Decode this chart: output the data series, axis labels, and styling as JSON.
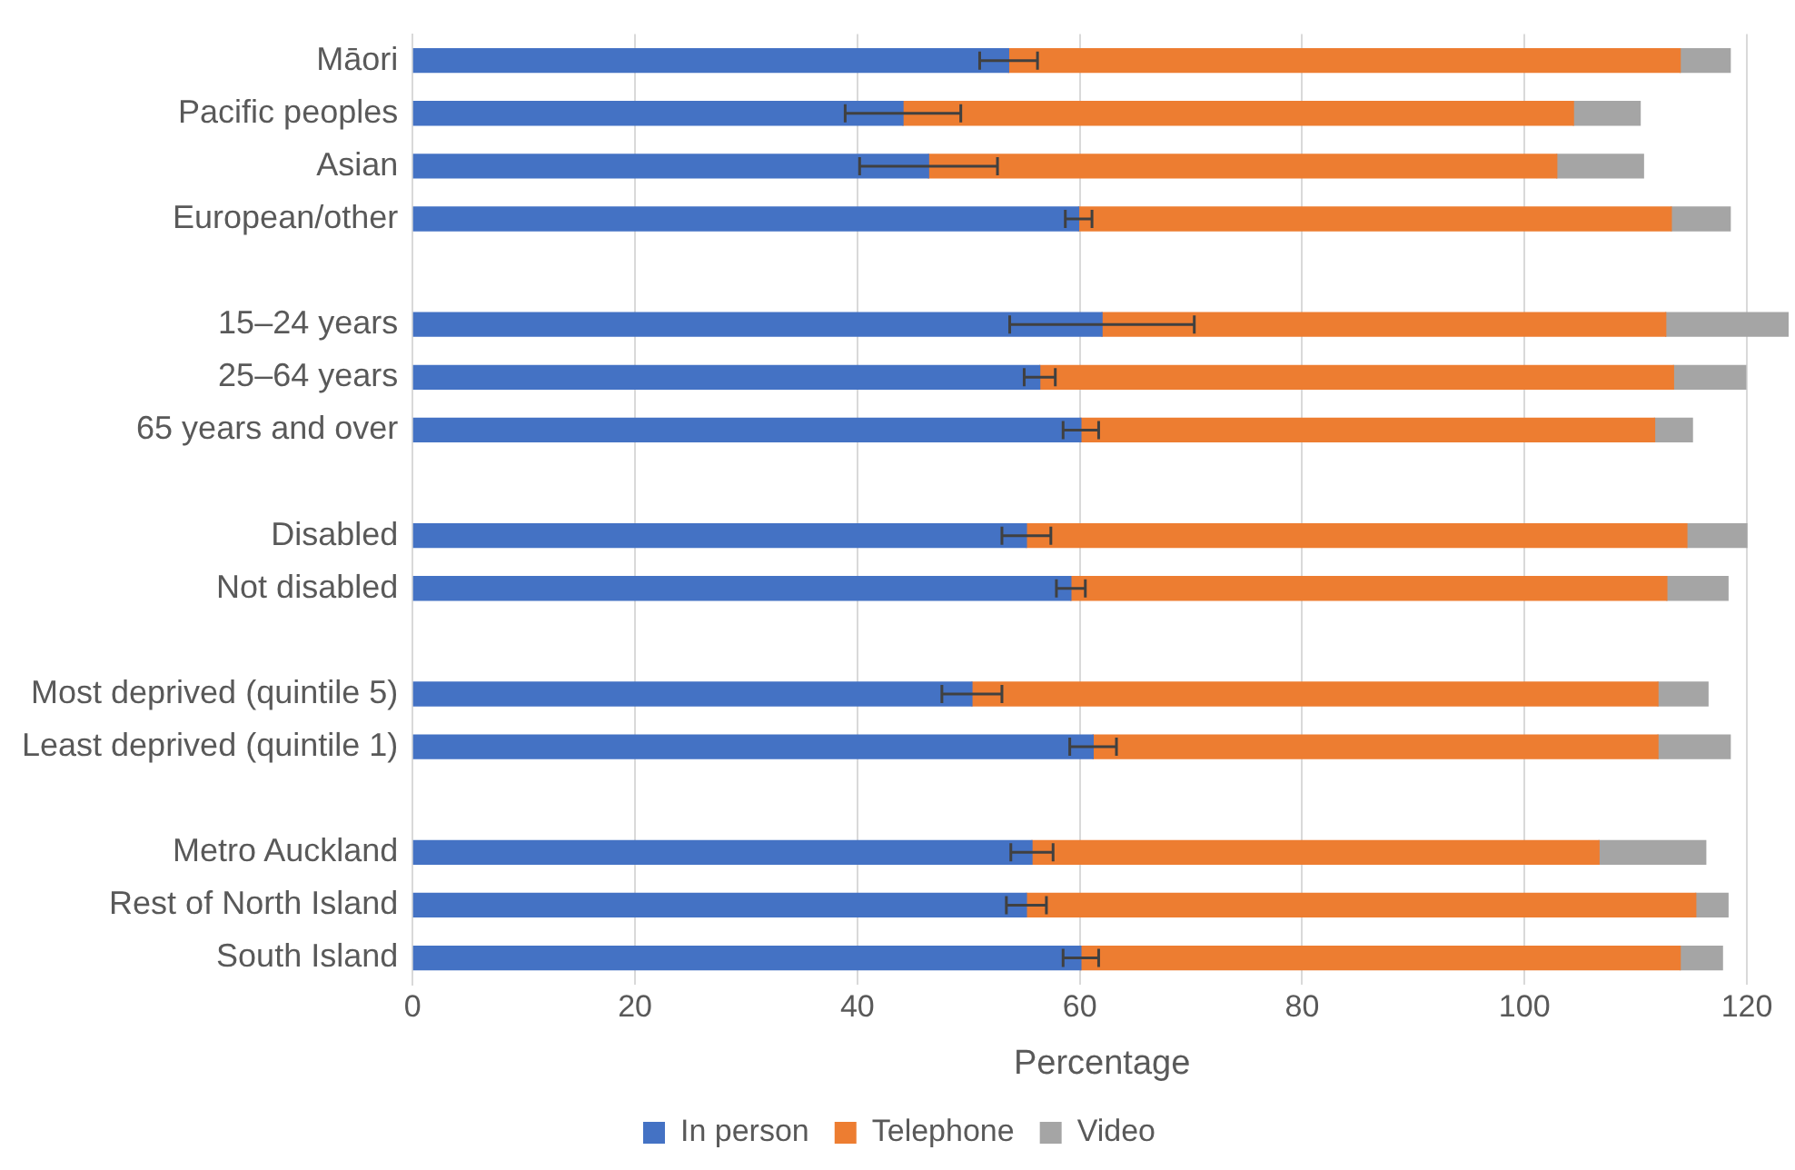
{
  "chart_data": {
    "type": "bar",
    "orientation": "horizontal",
    "stacked": true,
    "xlabel": "Percentage",
    "categories": [
      "Māori",
      "Pacific peoples",
      "Asian",
      "European/other",
      null,
      "15–24 years",
      "25–64 years",
      "65 years and over",
      null,
      "Disabled",
      "Not disabled",
      null,
      "Most deprived (quintile 5)",
      "Least deprived (quintile 1)",
      null,
      "Metro Auckland",
      "Rest of North Island",
      "South Island"
    ],
    "series": [
      {
        "name": "In person",
        "color": "#4472c4",
        "values": [
          53.6,
          44.1,
          46.4,
          59.9,
          null,
          62.0,
          56.4,
          60.1,
          null,
          55.2,
          59.2,
          null,
          50.3,
          61.2,
          null,
          55.7,
          55.2,
          60.1
        ],
        "errors": [
          2.6,
          5.2,
          6.2,
          1.2,
          null,
          8.3,
          1.4,
          1.6,
          null,
          2.2,
          1.3,
          null,
          2.7,
          2.1,
          null,
          1.9,
          1.8,
          1.6
        ]
      },
      {
        "name": "Telephone",
        "color": "#ed7d31",
        "values": [
          60.4,
          60.3,
          56.5,
          53.3,
          null,
          50.7,
          57.0,
          51.6,
          null,
          59.4,
          53.6,
          null,
          61.7,
          50.8,
          null,
          51.0,
          60.2,
          53.9
        ]
      },
      {
        "name": "Video",
        "color": "#a5a5a5",
        "values": [
          4.5,
          6.0,
          7.8,
          5.3,
          null,
          11.0,
          6.5,
          3.4,
          null,
          5.4,
          5.5,
          null,
          4.5,
          6.5,
          null,
          9.6,
          2.9,
          3.8
        ]
      }
    ],
    "xlim": [
      0,
      124
    ],
    "xticks": [
      0,
      20,
      40,
      60,
      80,
      100,
      120
    ],
    "grid": "x",
    "legend": "bottom"
  }
}
